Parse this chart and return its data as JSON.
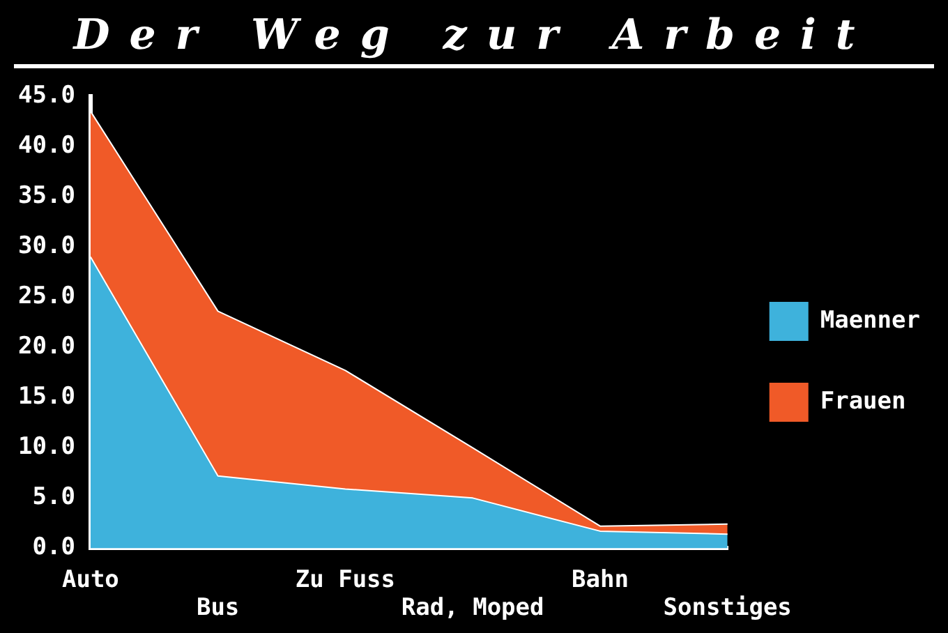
{
  "chart_data": {
    "type": "area",
    "title": "Der Weg zur Arbeit",
    "stacked": true,
    "categories": [
      "Auto",
      "Bus",
      "Zu Fuss",
      "Rad, Moped",
      "Bahn",
      "Sonstiges"
    ],
    "series": [
      {
        "name": "Maenner",
        "color": "#3eb2dc",
        "values": [
          29.0,
          7.2,
          5.9,
          5.0,
          1.7,
          1.4
        ]
      },
      {
        "name": "Frauen",
        "color": "#f05a28",
        "values": [
          14.5,
          16.4,
          11.8,
          5.0,
          0.5,
          1.0
        ]
      }
    ],
    "ylim": [
      0,
      45
    ],
    "yticks": [
      {
        "value": 0,
        "label": "0.0"
      },
      {
        "value": 5,
        "label": "5.0"
      },
      {
        "value": 10,
        "label": "10.0"
      },
      {
        "value": 15,
        "label": "15.0"
      },
      {
        "value": 20,
        "label": "20.0"
      },
      {
        "value": 25,
        "label": "25.0"
      },
      {
        "value": 30,
        "label": "30.0"
      },
      {
        "value": 35,
        "label": "35.0"
      },
      {
        "value": 40,
        "label": "40.0"
      },
      {
        "value": 45,
        "label": "45.0"
      }
    ],
    "grid": false,
    "legend": "right"
  }
}
